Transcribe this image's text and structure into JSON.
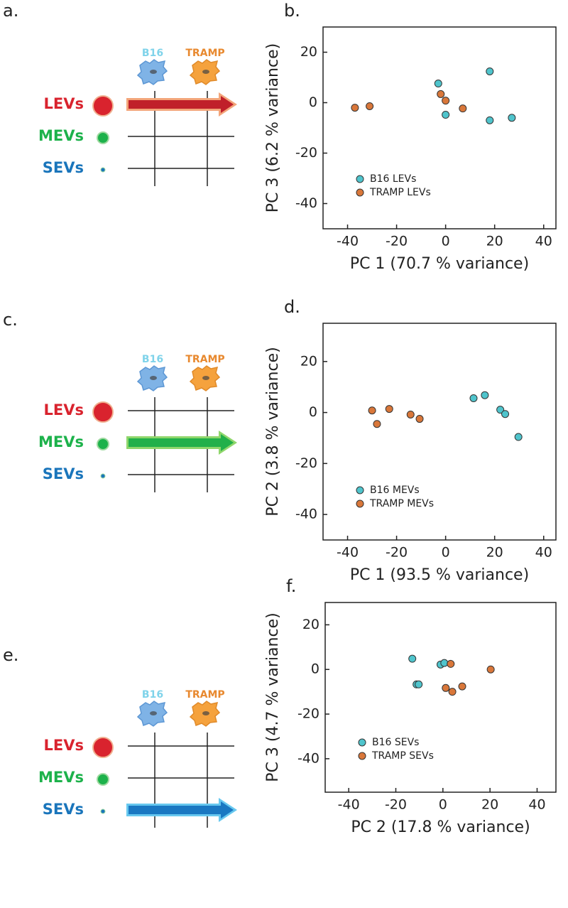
{
  "diagrams": [
    {
      "label": "a.",
      "cells": [
        "B16",
        "TRAMP"
      ],
      "rows": [
        "LEVs",
        "MEVs",
        "SEVs"
      ]
    },
    {
      "label": "c.",
      "cells": [
        "B16",
        "TRAMP"
      ],
      "rows": [
        "LEVs",
        "MEVs",
        "SEVs"
      ]
    },
    {
      "label": "e.",
      "cells": [
        "B16",
        "TRAMP"
      ],
      "rows": [
        "LEVs",
        "MEVs",
        "SEVs"
      ]
    }
  ],
  "chart_data": [
    {
      "type": "scatter",
      "label": "b.",
      "x_label": "PC 1 (70.7 % variance)",
      "y_label": "PC 3 (6.2 % variance)",
      "xlim": [
        -50,
        45
      ],
      "ylim": [
        -50,
        30
      ],
      "xticks": [
        -40,
        -20,
        0,
        20,
        40
      ],
      "yticks": [
        -40,
        -20,
        0,
        20
      ],
      "series": [
        {
          "name": "B16 LEVs",
          "color": "#4fc4cc",
          "x": [
            -3,
            0,
            18,
            18,
            27
          ],
          "values": [
            7.6,
            -4.8,
            12.4,
            -7,
            -6
          ]
        },
        {
          "name": "TRAMP LEVs",
          "color": "#d9773a",
          "x": [
            -37,
            -31,
            -2,
            0,
            7
          ],
          "values": [
            -2,
            -1.4,
            3.4,
            0.8,
            -2.3
          ]
        }
      ]
    },
    {
      "type": "scatter",
      "label": "d.",
      "x_label": "PC 1 (93.5 % variance)",
      "y_label": "PC 2 (3.8 % variance)",
      "xlim": [
        -50,
        45
      ],
      "ylim": [
        -50,
        35
      ],
      "xticks": [
        -40,
        -20,
        0,
        20,
        40
      ],
      "yticks": [
        -40,
        -20,
        0,
        20
      ],
      "series": [
        {
          "name": "B16 MEVs",
          "color": "#4fc4cc",
          "x": [
            11.4,
            16,
            22.3,
            24.3,
            29.7
          ],
          "values": [
            5.6,
            6.8,
            1.1,
            -0.6,
            -9.6
          ]
        },
        {
          "name": "TRAMP MEVs",
          "color": "#d9773a",
          "x": [
            -30,
            -28,
            -23,
            -14.3,
            -10.6
          ],
          "values": [
            0.8,
            -4.5,
            1.4,
            -0.8,
            -2.5
          ]
        }
      ]
    },
    {
      "type": "scatter",
      "label": "f.",
      "x_label": "PC 2 (17.8 % variance)",
      "y_label": "PC 3 (4.7 % variance)",
      "xlim": [
        -50,
        48
      ],
      "ylim": [
        -55,
        30
      ],
      "xticks": [
        -40,
        -20,
        0,
        20,
        40
      ],
      "yticks": [
        -40,
        -20,
        0,
        20
      ],
      "series": [
        {
          "name": "B16 SEVs",
          "color": "#4fc4cc",
          "x": [
            -13,
            -11.2,
            -10.3,
            -1,
            0.6
          ],
          "values": [
            4.8,
            -6.7,
            -6.7,
            2.2,
            2.9
          ]
        },
        {
          "name": "TRAMP SEVs",
          "color": "#d9773a",
          "x": [
            3.3,
            1.2,
            4,
            8.2,
            20.3
          ],
          "values": [
            2.5,
            -8.3,
            -10,
            -7.6,
            0
          ]
        }
      ]
    }
  ]
}
